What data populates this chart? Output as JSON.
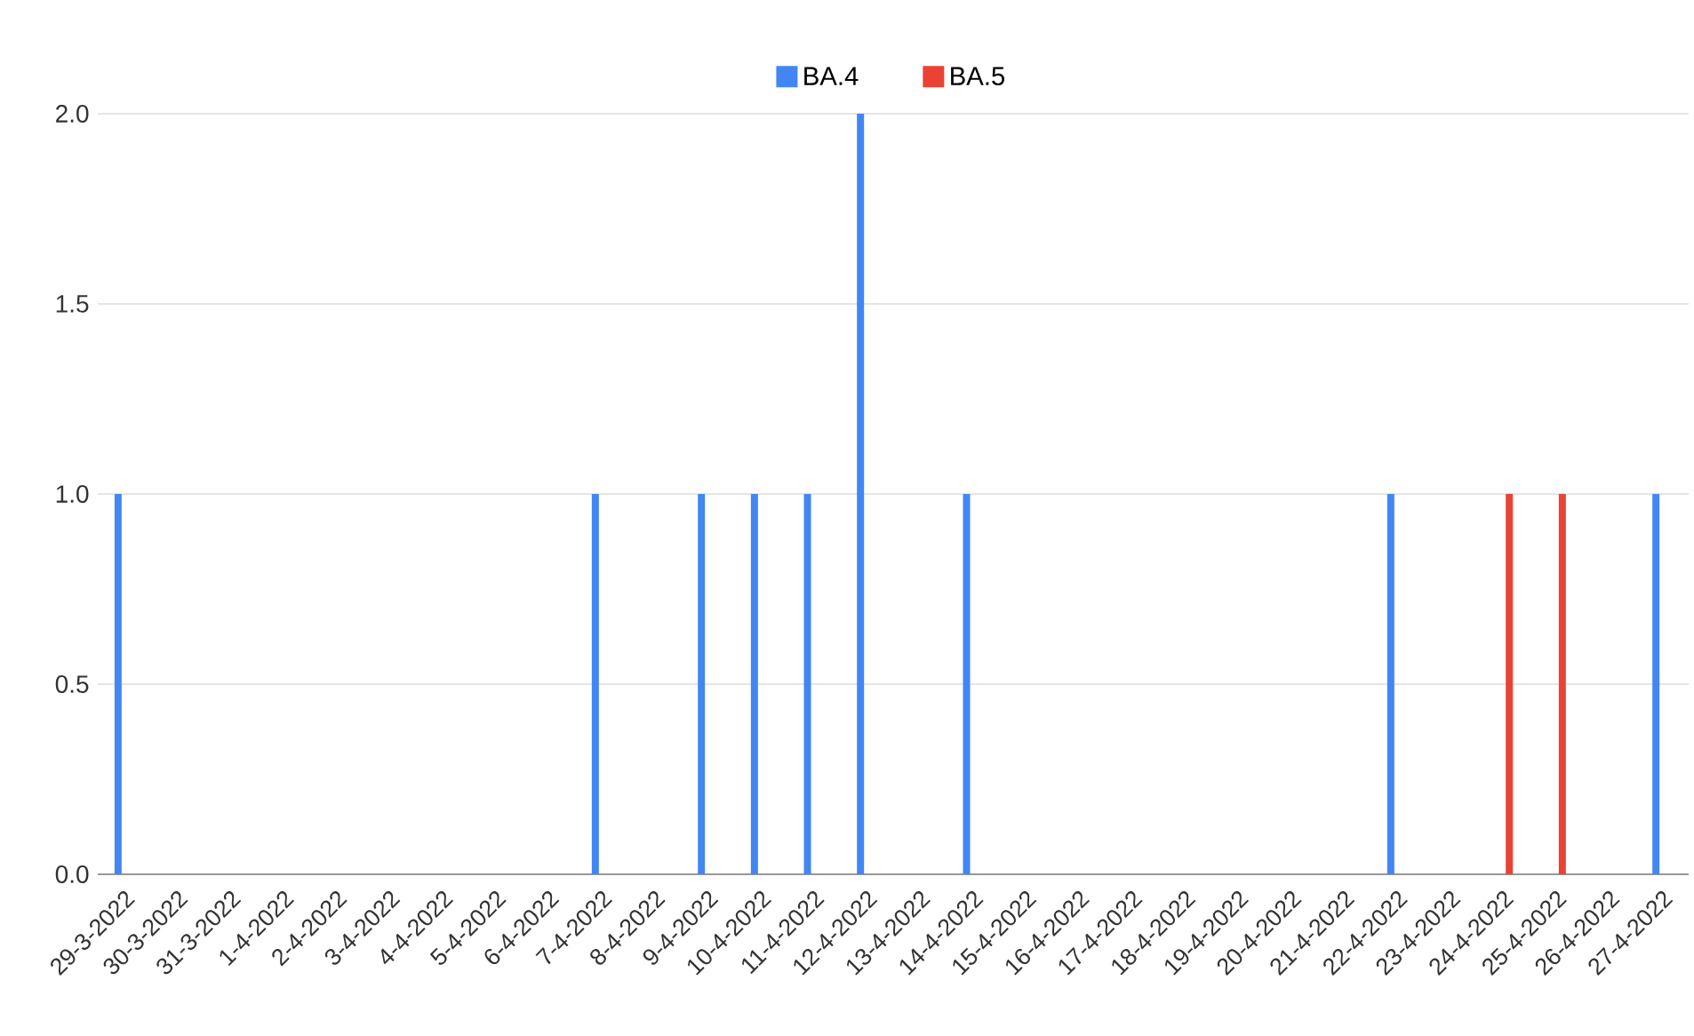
{
  "chart_data": {
    "type": "bar",
    "categories": [
      "29-3-2022",
      "30-3-2022",
      "31-3-2022",
      "1-4-2022",
      "2-4-2022",
      "3-4-2022",
      "4-4-2022",
      "5-4-2022",
      "6-4-2022",
      "7-4-2022",
      "8-4-2022",
      "9-4-2022",
      "10-4-2022",
      "11-4-2022",
      "12-4-2022",
      "13-4-2022",
      "14-4-2022",
      "15-4-2022",
      "16-4-2022",
      "17-4-2022",
      "18-4-2022",
      "19-4-2022",
      "20-4-2022",
      "21-4-2022",
      "22-4-2022",
      "23-4-2022",
      "24-4-2022",
      "25-4-2022",
      "26-4-2022",
      "27-4-2022"
    ],
    "series": [
      {
        "name": "BA.4",
        "color": "#4285f4",
        "values": [
          1,
          0,
          0,
          0,
          0,
          0,
          0,
          0,
          0,
          1,
          0,
          1,
          1,
          1,
          2,
          0,
          1,
          0,
          0,
          0,
          0,
          0,
          0,
          0,
          1,
          0,
          0,
          0,
          0,
          1
        ]
      },
      {
        "name": "BA.5",
        "color": "#ea4335",
        "values": [
          0,
          0,
          0,
          0,
          0,
          0,
          0,
          0,
          0,
          0,
          0,
          0,
          0,
          0,
          0,
          0,
          0,
          0,
          0,
          0,
          0,
          0,
          0,
          0,
          0,
          0,
          1,
          1,
          0,
          0
        ]
      }
    ],
    "ylim": [
      0,
      2
    ],
    "yticks": [
      {
        "value": 0,
        "label": "0.0"
      },
      {
        "value": 0.5,
        "label": "0.5"
      },
      {
        "value": 1,
        "label": "1.0"
      },
      {
        "value": 1.5,
        "label": "1.5"
      },
      {
        "value": 2,
        "label": "2.0"
      }
    ],
    "grid": "y",
    "legend": "top"
  }
}
